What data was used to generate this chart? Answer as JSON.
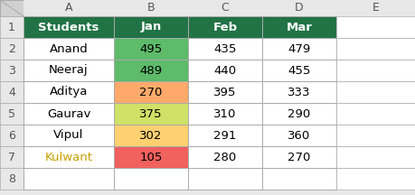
{
  "col_headers": [
    "Students",
    "Jan",
    "Feb",
    "Mar"
  ],
  "row_labels": [
    "Anand",
    "Neeraj",
    "Aditya",
    "Gaurav",
    "Vipul",
    "Kulwant"
  ],
  "data": [
    [
      495,
      435,
      479
    ],
    [
      489,
      440,
      455
    ],
    [
      270,
      395,
      333
    ],
    [
      375,
      310,
      290
    ],
    [
      302,
      291,
      360
    ],
    [
      105,
      280,
      270
    ]
  ],
  "header_bg": "#217346",
  "header_text": "#ffffff",
  "cell_colors": {
    "0,0": "#5DBB6A",
    "1,0": "#5DBB6A",
    "2,0": "#FFAA6B",
    "3,0": "#CFE166",
    "4,0": "#FFD070",
    "5,0": "#F1615E"
  },
  "default_cell_bg": "#ffffff",
  "grid_color": "#aaaaaa",
  "outer_bg": "#e8e8e8",
  "row_label_colors": [
    "#000000",
    "#000000",
    "#000000",
    "#000000",
    "#000000",
    "#c8a000"
  ],
  "corner_bg": "#d0d0d0",
  "e_col_bg": "#f0f0f0",
  "row_num_bg": "#e8e8e8"
}
